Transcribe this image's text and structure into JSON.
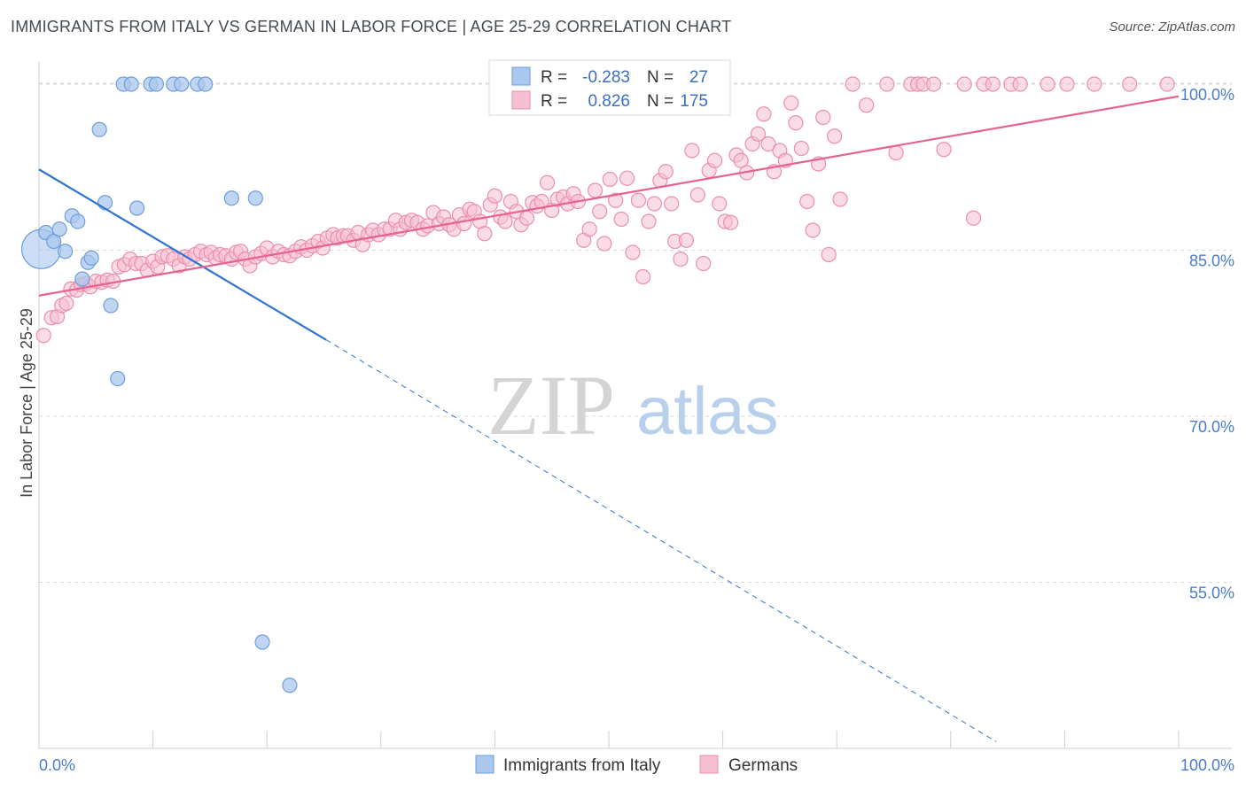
{
  "title": "IMMIGRANTS FROM ITALY VS GERMAN IN LABOR FORCE | AGE 25-29 CORRELATION CHART",
  "source": "Source: ZipAtlas.com",
  "watermark": {
    "zip": "ZIP",
    "atlas": "atlas"
  },
  "colors": {
    "blue_fill": "#aac7ee",
    "blue_stroke": "#6e9fdc",
    "blue_line": "#2f74d0",
    "pink_fill": "#f6bfd0",
    "pink_stroke": "#ec8fae",
    "pink_line": "#e4638f",
    "tick_text": "#4a7cc9",
    "grid": "#d9d9d9"
  },
  "legend": {
    "rows": [
      {
        "r_label": "R =",
        "r_value": "-0.283",
        "n_label": "N =",
        "n_value": "27"
      },
      {
        "r_label": "R =",
        "r_value": "0.826",
        "n_label": "N =",
        "n_value": "175"
      }
    ]
  },
  "bottom_legend": [
    "Immigrants from Italy",
    "Germans"
  ],
  "chart_data": {
    "type": "scatter",
    "title": "IMMIGRANTS FROM ITALY VS GERMAN IN LABOR FORCE | AGE 25-29 CORRELATION CHART",
    "xlabel": "",
    "ylabel": "In Labor Force | Age 25-29",
    "xlim": [
      0,
      100
    ],
    "ylim": [
      40,
      102
    ],
    "x_tick_labels": [
      "0.0%",
      "100.0%"
    ],
    "y_ticks": [
      55,
      70,
      85,
      100
    ],
    "y_tick_labels": [
      "55.0%",
      "70.0%",
      "85.0%",
      "100.0%"
    ],
    "grid": true,
    "legend_position": "top-center",
    "series": [
      {
        "name": "Immigrants from Italy",
        "r": -0.283,
        "n": 27,
        "points": [
          [
            0.2,
            85.1
          ],
          [
            0.6,
            86.6
          ],
          [
            1.3,
            85.8
          ],
          [
            1.8,
            86.9
          ],
          [
            2.3,
            84.9
          ],
          [
            2.9,
            88.1
          ],
          [
            3.4,
            87.6
          ],
          [
            3.8,
            82.4
          ],
          [
            4.3,
            83.9
          ],
          [
            4.6,
            84.3
          ],
          [
            5.3,
            95.9
          ],
          [
            5.8,
            89.3
          ],
          [
            6.3,
            80.0
          ],
          [
            6.9,
            73.4
          ],
          [
            7.4,
            100.0
          ],
          [
            8.1,
            100.0
          ],
          [
            8.6,
            88.8
          ],
          [
            9.8,
            100.0
          ],
          [
            10.3,
            100.0
          ],
          [
            11.8,
            100.0
          ],
          [
            12.5,
            100.0
          ],
          [
            13.9,
            100.0
          ],
          [
            14.6,
            100.0
          ],
          [
            16.9,
            89.7
          ],
          [
            19.0,
            89.7
          ],
          [
            19.6,
            49.6
          ],
          [
            22.0,
            45.7
          ]
        ],
        "big_point": [
          0.2,
          85.1
        ],
        "trend": {
          "x0": 0,
          "y0": 92.3,
          "x1": 25.2,
          "y1": 76.9,
          "dashed_to_x": 84.0,
          "dashed_to_y": 40.6
        }
      },
      {
        "name": "Germans",
        "r": 0.826,
        "n": 175,
        "trend": {
          "x0": 0,
          "y0": 80.9,
          "x1": 100,
          "y1": 98.9
        },
        "points": [
          [
            0.4,
            77.3
          ],
          [
            1.1,
            78.9
          ],
          [
            1.6,
            79.0
          ],
          [
            2.0,
            80.0
          ],
          [
            2.4,
            80.2
          ],
          [
            2.8,
            81.5
          ],
          [
            3.3,
            81.4
          ],
          [
            3.7,
            81.9
          ],
          [
            4.1,
            82.0
          ],
          [
            4.5,
            81.7
          ],
          [
            5.0,
            82.2
          ],
          [
            5.5,
            82.1
          ],
          [
            6.0,
            82.3
          ],
          [
            6.5,
            82.2
          ],
          [
            7.0,
            83.5
          ],
          [
            7.5,
            83.7
          ],
          [
            8.0,
            84.2
          ],
          [
            8.5,
            83.8
          ],
          [
            9.0,
            83.8
          ],
          [
            9.5,
            83.2
          ],
          [
            10.0,
            84.0
          ],
          [
            10.4,
            83.5
          ],
          [
            10.8,
            84.4
          ],
          [
            11.3,
            84.5
          ],
          [
            11.8,
            84.2
          ],
          [
            12.3,
            83.6
          ],
          [
            12.8,
            84.4
          ],
          [
            13.2,
            84.2
          ],
          [
            13.7,
            84.6
          ],
          [
            14.2,
            84.9
          ],
          [
            14.7,
            84.6
          ],
          [
            15.1,
            84.8
          ],
          [
            15.5,
            84.3
          ],
          [
            15.9,
            84.6
          ],
          [
            16.4,
            84.5
          ],
          [
            16.9,
            84.2
          ],
          [
            17.3,
            84.8
          ],
          [
            17.7,
            84.9
          ],
          [
            18.1,
            84.2
          ],
          [
            18.5,
            83.6
          ],
          [
            19.0,
            84.4
          ],
          [
            19.5,
            84.7
          ],
          [
            20.0,
            85.2
          ],
          [
            20.5,
            84.4
          ],
          [
            21.0,
            84.9
          ],
          [
            21.5,
            84.6
          ],
          [
            22.0,
            84.5
          ],
          [
            22.5,
            84.9
          ],
          [
            23.0,
            85.3
          ],
          [
            23.5,
            85.0
          ],
          [
            24.0,
            85.4
          ],
          [
            24.5,
            85.8
          ],
          [
            24.9,
            85.2
          ],
          [
            25.3,
            86.1
          ],
          [
            25.8,
            86.4
          ],
          [
            26.2,
            86.1
          ],
          [
            26.7,
            86.3
          ],
          [
            27.1,
            86.3
          ],
          [
            27.6,
            85.9
          ],
          [
            28.0,
            86.6
          ],
          [
            28.4,
            85.5
          ],
          [
            28.9,
            86.4
          ],
          [
            29.3,
            86.8
          ],
          [
            29.8,
            86.4
          ],
          [
            30.3,
            86.9
          ],
          [
            30.8,
            86.9
          ],
          [
            31.3,
            87.7
          ],
          [
            31.7,
            86.9
          ],
          [
            32.2,
            87.5
          ],
          [
            32.7,
            87.7
          ],
          [
            33.2,
            87.5
          ],
          [
            33.7,
            86.9
          ],
          [
            34.1,
            87.2
          ],
          [
            34.6,
            88.4
          ],
          [
            35.1,
            87.4
          ],
          [
            35.5,
            88.0
          ],
          [
            36.0,
            87.3
          ],
          [
            36.4,
            86.9
          ],
          [
            36.9,
            88.2
          ],
          [
            37.3,
            87.4
          ],
          [
            37.8,
            88.7
          ],
          [
            38.2,
            88.5
          ],
          [
            38.7,
            87.6
          ],
          [
            39.1,
            86.5
          ],
          [
            39.6,
            89.1
          ],
          [
            40.0,
            89.9
          ],
          [
            40.5,
            88.0
          ],
          [
            40.9,
            87.6
          ],
          [
            41.4,
            89.4
          ],
          [
            41.9,
            88.5
          ],
          [
            42.3,
            87.3
          ],
          [
            42.8,
            87.9
          ],
          [
            43.3,
            89.3
          ],
          [
            43.7,
            89.0
          ],
          [
            44.1,
            89.4
          ],
          [
            44.6,
            91.1
          ],
          [
            45.0,
            88.6
          ],
          [
            45.5,
            89.6
          ],
          [
            46.0,
            89.8
          ],
          [
            46.4,
            89.2
          ],
          [
            46.9,
            90.1
          ],
          [
            47.3,
            89.4
          ],
          [
            47.8,
            85.9
          ],
          [
            48.3,
            86.9
          ],
          [
            48.8,
            90.4
          ],
          [
            49.2,
            88.5
          ],
          [
            49.6,
            85.6
          ],
          [
            50.1,
            91.4
          ],
          [
            50.6,
            89.5
          ],
          [
            51.1,
            87.8
          ],
          [
            51.6,
            91.5
          ],
          [
            52.1,
            84.8
          ],
          [
            52.6,
            89.5
          ],
          [
            53.0,
            82.6
          ],
          [
            53.5,
            87.6
          ],
          [
            54.0,
            89.2
          ],
          [
            54.5,
            91.3
          ],
          [
            55.0,
            92.1
          ],
          [
            55.5,
            89.2
          ],
          [
            55.8,
            85.8
          ],
          [
            56.3,
            84.2
          ],
          [
            56.8,
            85.9
          ],
          [
            57.3,
            94.0
          ],
          [
            57.8,
            90.0
          ],
          [
            58.3,
            83.8
          ],
          [
            58.8,
            92.2
          ],
          [
            59.3,
            93.1
          ],
          [
            59.7,
            89.2
          ],
          [
            60.2,
            87.6
          ],
          [
            60.7,
            87.5
          ],
          [
            61.2,
            93.6
          ],
          [
            61.6,
            93.1
          ],
          [
            62.1,
            92.0
          ],
          [
            62.6,
            94.6
          ],
          [
            63.1,
            95.5
          ],
          [
            63.6,
            97.3
          ],
          [
            64.0,
            94.6
          ],
          [
            64.5,
            92.1
          ],
          [
            65.0,
            94.0
          ],
          [
            65.5,
            93.1
          ],
          [
            66.0,
            98.3
          ],
          [
            66.4,
            96.5
          ],
          [
            66.9,
            94.2
          ],
          [
            67.4,
            89.4
          ],
          [
            67.9,
            86.8
          ],
          [
            68.4,
            92.8
          ],
          [
            68.8,
            97.0
          ],
          [
            69.3,
            84.6
          ],
          [
            69.8,
            95.3
          ],
          [
            70.3,
            89.6
          ],
          [
            71.4,
            100.0
          ],
          [
            72.6,
            98.1
          ],
          [
            74.4,
            100.0
          ],
          [
            75.2,
            93.8
          ],
          [
            76.5,
            100.0
          ],
          [
            77.1,
            100.0
          ],
          [
            77.6,
            100.0
          ],
          [
            78.5,
            100.0
          ],
          [
            79.4,
            94.1
          ],
          [
            81.2,
            100.0
          ],
          [
            82.0,
            87.9
          ],
          [
            82.9,
            100.0
          ],
          [
            83.7,
            100.0
          ],
          [
            85.3,
            100.0
          ],
          [
            86.1,
            100.0
          ],
          [
            88.5,
            100.0
          ],
          [
            90.2,
            100.0
          ],
          [
            92.6,
            100.0
          ],
          [
            95.7,
            100.0
          ],
          [
            99.0,
            100.0
          ]
        ]
      }
    ]
  }
}
